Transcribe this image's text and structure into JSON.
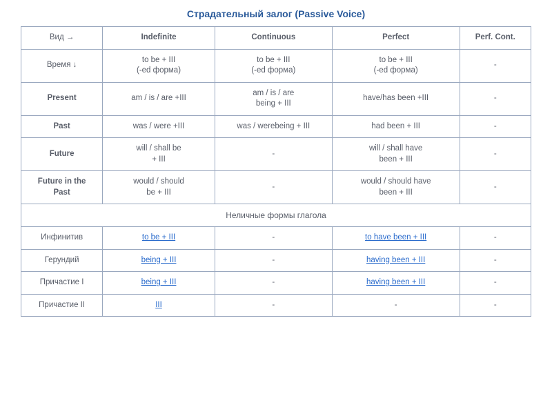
{
  "title_text": "Страдательный  залог  (Passive  Voice)",
  "title_color": "#2a5a9a",
  "border_color": "#9aa8bf",
  "text_color": "#595e69",
  "link_color": "#2a6bcc",
  "header": {
    "c0": "Вид →",
    "c1": "Indefinite",
    "c2": "Continuous",
    "c3": "Perfect",
    "c4": "Perf. Cont."
  },
  "rows": [
    {
      "label": "Время ↓",
      "bold": false,
      "cells": [
        "to be  +  III\n(-ed форма)",
        "to be  +  III\n(-ed форма)",
        "to be  +  III\n(-ed форма)",
        "-"
      ]
    },
    {
      "label": "Present",
      "bold": true,
      "cells": [
        "am / is / are +III",
        "am / is / are\nbeing + III",
        "have/has  been +III",
        "-"
      ]
    },
    {
      "label": "Past",
      "bold": true,
      "cells": [
        "was / were +III",
        "was / werebeing + III",
        "had been + III",
        "-"
      ]
    },
    {
      "label": "Future",
      "bold": true,
      "cells": [
        "will / shall  be\n+ III",
        "-",
        "will / shall  have\nbeen + III",
        "-"
      ]
    },
    {
      "label": "Future in the\nPast",
      "bold": true,
      "cells": [
        "would / should\nbe + III",
        "-",
        "would / should have\nbeen + III",
        "-"
      ]
    }
  ],
  "section_label": "Неличные  формы  глагола",
  "nonfinite": [
    {
      "label": "Инфинитив",
      "c1": "to be + III",
      "c1_link": true,
      "c2": "-",
      "c2_link": false,
      "c3": "to have been + III",
      "c3_link": true,
      "c4": "-",
      "c4_link": false
    },
    {
      "label": "Герундий",
      "c1": "being + III",
      "c1_link": true,
      "c2": "-",
      "c2_link": false,
      "c3": "having been + III",
      "c3_link": true,
      "c4": "-",
      "c4_link": false
    },
    {
      "label": "Причастие I",
      "c1": "being + III",
      "c1_link": true,
      "c2": "-",
      "c2_link": false,
      "c3": "having been + III",
      "c3_link": true,
      "c4": "-",
      "c4_link": false
    },
    {
      "label": "Причастие II",
      "c1": " III",
      "c1_link": true,
      "c2": "-",
      "c2_link": false,
      "c3": "-",
      "c3_link": false,
      "c4": "-",
      "c4_link": false
    }
  ]
}
